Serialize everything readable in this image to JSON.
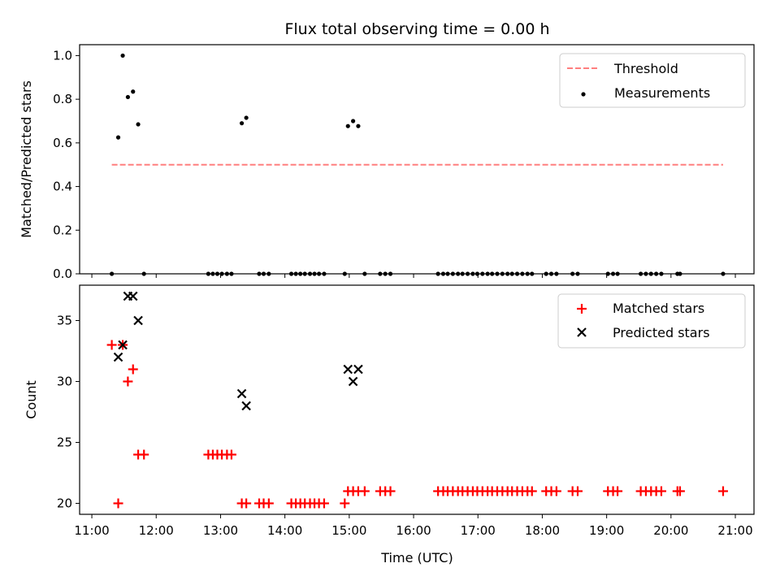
{
  "title": "Flux total observing time = 0.00 h",
  "xlabel": "Time (UTC)",
  "x_ticks": [
    "11:00",
    "12:00",
    "13:00",
    "14:00",
    "15:00",
    "16:00",
    "17:00",
    "18:00",
    "19:00",
    "20:00",
    "21:00"
  ],
  "colors": {
    "threshold": "#ff7f7f",
    "measurements": "#000000",
    "matched": "#ff0000",
    "predicted": "#000000"
  },
  "chart_data": [
    {
      "type": "scatter",
      "title": "Flux total observing time = 0.00 h",
      "xlabel": "",
      "ylabel": "Matched/Predicted stars",
      "x_unit": "hours UTC",
      "xlim": [
        10.81,
        21.29
      ],
      "ylim": [
        0.0,
        1.05
      ],
      "yticks": [
        "0.0",
        "0.2",
        "0.4",
        "0.6",
        "0.8",
        "1.0"
      ],
      "legend_position": "top-right",
      "series": [
        {
          "name": "Threshold",
          "style": "dashed-line",
          "x": [
            11.31,
            20.81
          ],
          "y": [
            0.5,
            0.5
          ]
        },
        {
          "name": "Measurements",
          "style": "dots",
          "x": [
            11.31,
            11.41,
            11.48,
            11.56,
            11.64,
            11.72,
            11.81,
            12.81,
            12.88,
            12.95,
            13.02,
            13.1,
            13.17,
            13.33,
            13.4,
            13.6,
            13.67,
            13.75,
            14.1,
            14.17,
            14.24,
            14.31,
            14.39,
            14.46,
            14.53,
            14.61,
            14.93,
            14.98,
            15.06,
            15.14,
            15.24,
            15.48,
            15.56,
            15.64,
            16.38,
            16.46,
            16.53,
            16.61,
            16.69,
            16.76,
            16.84,
            16.92,
            16.99,
            17.07,
            17.15,
            17.22,
            17.3,
            17.38,
            17.46,
            17.53,
            17.61,
            17.69,
            17.77,
            17.84,
            18.06,
            18.14,
            18.22,
            18.47,
            18.55,
            19.02,
            19.1,
            19.17,
            19.53,
            19.61,
            19.69,
            19.77,
            19.85,
            20.1,
            20.14,
            20.81
          ],
          "y": [
            0.0,
            0.625,
            1.0,
            0.81,
            0.835,
            0.685,
            0.0,
            0.0,
            0.0,
            0.0,
            0.0,
            0.0,
            0.0,
            0.69,
            0.715,
            0.0,
            0.0,
            0.0,
            0.0,
            0.0,
            0.0,
            0.0,
            0.0,
            0.0,
            0.0,
            0.0,
            0.0,
            0.677,
            0.7,
            0.677,
            0.0,
            0.0,
            0.0,
            0.0,
            0.0,
            0.0,
            0.0,
            0.0,
            0.0,
            0.0,
            0.0,
            0.0,
            0.0,
            0.0,
            0.0,
            0.0,
            0.0,
            0.0,
            0.0,
            0.0,
            0.0,
            0.0,
            0.0,
            0.0,
            0.0,
            0.0,
            0.0,
            0.0,
            0.0,
            0.0,
            0.0,
            0.0,
            0.0,
            0.0,
            0.0,
            0.0,
            0.0,
            0.0,
            0.0,
            0.0
          ]
        }
      ]
    },
    {
      "type": "scatter",
      "title": "",
      "xlabel": "Time (UTC)",
      "ylabel": "Count",
      "x_unit": "hours UTC",
      "xlim": [
        10.81,
        21.29
      ],
      "ylim": [
        19.1,
        37.9
      ],
      "yticks": [
        "20",
        "25",
        "30",
        "35"
      ],
      "legend_position": "top-right",
      "series": [
        {
          "name": "Matched stars",
          "marker": "plus",
          "x": [
            11.31,
            11.41,
            11.48,
            11.56,
            11.64,
            11.72,
            11.81,
            12.81,
            12.88,
            12.95,
            13.02,
            13.1,
            13.17,
            13.33,
            13.4,
            13.6,
            13.67,
            13.75,
            14.1,
            14.17,
            14.24,
            14.31,
            14.39,
            14.46,
            14.53,
            14.61,
            14.93,
            14.98,
            15.06,
            15.14,
            15.24,
            15.48,
            15.56,
            15.64,
            16.38,
            16.46,
            16.53,
            16.61,
            16.69,
            16.76,
            16.84,
            16.92,
            16.99,
            17.07,
            17.15,
            17.22,
            17.3,
            17.38,
            17.46,
            17.53,
            17.61,
            17.69,
            17.77,
            17.84,
            18.06,
            18.14,
            18.22,
            18.47,
            18.55,
            19.02,
            19.1,
            19.17,
            19.53,
            19.61,
            19.69,
            19.77,
            19.85,
            20.1,
            20.14,
            20.81
          ],
          "y": [
            33,
            20,
            33,
            30,
            31,
            24,
            24,
            24,
            24,
            24,
            24,
            24,
            24,
            20,
            20,
            20,
            20,
            20,
            20,
            20,
            20,
            20,
            20,
            20,
            20,
            20,
            20,
            21,
            21,
            21,
            21,
            21,
            21,
            21,
            21,
            21,
            21,
            21,
            21,
            21,
            21,
            21,
            21,
            21,
            21,
            21,
            21,
            21,
            21,
            21,
            21,
            21,
            21,
            21,
            21,
            21,
            21,
            21,
            21,
            21,
            21,
            21,
            21,
            21,
            21,
            21,
            21,
            21,
            21,
            21
          ]
        },
        {
          "name": "Predicted stars",
          "marker": "x",
          "x": [
            11.41,
            11.48,
            11.56,
            11.64,
            11.72,
            13.33,
            13.4,
            14.98,
            15.06,
            15.14
          ],
          "y": [
            32,
            33,
            37,
            37,
            35,
            29,
            28,
            31,
            30,
            31
          ]
        }
      ]
    }
  ]
}
